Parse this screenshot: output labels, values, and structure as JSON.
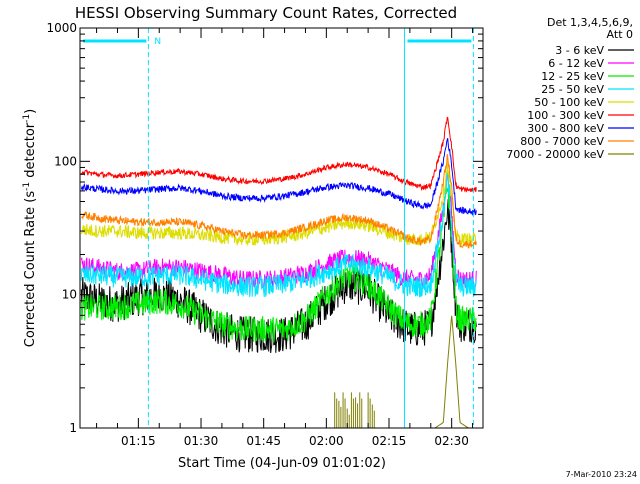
{
  "chart_data": {
    "type": "line",
    "title": "HESSI Observing Summary Count Rates, Corrected",
    "xlabel": "Start Time (04-Jun-09 01:01:02)",
    "ylabel_main": "Corrected Count Rate (s",
    "ylabel_sup1": "-1",
    "ylabel_mid": " detector",
    "ylabel_sup2": "-1",
    "ylabel_end": ")",
    "ylabel": "Corrected Count Rate (s-1 detector-1)",
    "yscale": "log",
    "ylim": [
      1,
      1000
    ],
    "xlim_minutes": [
      61.03,
      157.5
    ],
    "y_ticks": [
      "1",
      "10",
      "100",
      "1000"
    ],
    "x_ticks": [
      {
        "label": "01:15",
        "minute": 75
      },
      {
        "label": "01:30",
        "minute": 90
      },
      {
        "label": "01:45",
        "minute": 105
      },
      {
        "label": "02:00",
        "minute": 120
      },
      {
        "label": "02:15",
        "minute": 135
      },
      {
        "label": "02:30",
        "minute": 150
      }
    ],
    "legend_header": [
      "Det 1,3,4,5,6,9,",
      "Att 0"
    ],
    "legend_position": "right",
    "date_stamp": "7-Mar-2010 23:24",
    "night_marker_label": "N",
    "night_intervals": [
      [
        61.03,
        77.4
      ],
      [
        138.7,
        155.2
      ]
    ],
    "series": [
      {
        "name": "3 - 6 keV",
        "color": "#000000",
        "x": [
          61,
          65,
          70,
          75,
          80,
          85,
          90,
          95,
          100,
          105,
          110,
          115,
          120,
          125,
          130,
          135,
          138,
          140,
          143,
          145,
          148,
          149,
          150,
          151,
          152,
          154,
          157
        ],
        "values": [
          10,
          9,
          8.5,
          9.5,
          10,
          9,
          7,
          5.5,
          5,
          5,
          5,
          6,
          9,
          12,
          11,
          7,
          6,
          5.5,
          5.5,
          6,
          25,
          45,
          25,
          8,
          6,
          6,
          6
        ]
      },
      {
        "name": "6 - 12 keV",
        "color": "#ff00ff",
        "x": [
          61,
          65,
          70,
          75,
          80,
          85,
          90,
          95,
          100,
          105,
          110,
          115,
          120,
          125,
          130,
          135,
          138,
          140,
          143,
          145,
          148,
          149,
          150,
          151,
          152,
          154,
          157
        ],
        "values": [
          17,
          16,
          15,
          15,
          16,
          16,
          15,
          14,
          13,
          13,
          13.5,
          14.5,
          17,
          19,
          18,
          15,
          13.5,
          13,
          13,
          14,
          45,
          90,
          40,
          15,
          13,
          13,
          13
        ]
      },
      {
        "name": "12 - 25 keV",
        "color": "#00ee00",
        "x": [
          61,
          65,
          70,
          75,
          80,
          85,
          90,
          95,
          100,
          105,
          110,
          115,
          120,
          125,
          130,
          135,
          138,
          140,
          143,
          145,
          148,
          149,
          150,
          151,
          152,
          154,
          157
        ],
        "values": [
          8,
          8,
          8,
          8.5,
          9,
          8.5,
          7,
          6,
          5.5,
          5.5,
          5.5,
          6.5,
          10,
          14,
          12,
          8,
          6.5,
          6,
          6,
          6.5,
          35,
          70,
          30,
          8,
          6.5,
          6.5,
          6.5
        ]
      },
      {
        "name": "25 - 50 keV",
        "color": "#00e5ff",
        "x": [
          61,
          65,
          70,
          75,
          80,
          85,
          90,
          95,
          100,
          105,
          110,
          115,
          120,
          125,
          130,
          135,
          138,
          140,
          143,
          145,
          148,
          149,
          150,
          151,
          152,
          154,
          157
        ],
        "values": [
          14,
          14,
          13.5,
          13.5,
          14,
          14,
          13,
          12,
          11.5,
          11.5,
          12,
          13,
          15,
          17,
          16,
          13.5,
          12,
          11.5,
          11.5,
          12,
          40,
          80,
          35,
          13,
          11.5,
          11.5,
          11.5
        ]
      },
      {
        "name": "50 - 100 keV",
        "color": "#dddd00",
        "x": [
          61,
          65,
          70,
          75,
          80,
          85,
          90,
          95,
          100,
          105,
          110,
          115,
          120,
          125,
          130,
          135,
          138,
          140,
          143,
          145,
          148,
          149,
          150,
          151,
          152,
          154,
          157
        ],
        "values": [
          31,
          30,
          30,
          29,
          29,
          29,
          28,
          27,
          26,
          26,
          27,
          29,
          32,
          35,
          33,
          29,
          27,
          26,
          26,
          27,
          55,
          95,
          50,
          28,
          26,
          26,
          26
        ]
      },
      {
        "name": "100 - 300 keV",
        "color": "#ff0000",
        "x": [
          61,
          65,
          70,
          75,
          80,
          85,
          90,
          95,
          100,
          105,
          110,
          115,
          120,
          125,
          130,
          135,
          138,
          140,
          143,
          145,
          148,
          149,
          150,
          151,
          152,
          154,
          157
        ],
        "values": [
          84,
          80,
          78,
          80,
          83,
          84,
          80,
          74,
          71,
          71,
          74,
          80,
          90,
          95,
          90,
          80,
          72,
          68,
          64,
          66,
          140,
          220,
          130,
          66,
          62,
          61,
          61
        ]
      },
      {
        "name": "300 - 800 keV",
        "color": "#0000ff",
        "x": [
          61,
          65,
          70,
          75,
          80,
          85,
          90,
          95,
          100,
          105,
          110,
          115,
          120,
          125,
          130,
          135,
          138,
          140,
          143,
          145,
          148,
          149,
          150,
          151,
          152,
          154,
          157
        ],
        "values": [
          65,
          62,
          60,
          60,
          62,
          63,
          60,
          55,
          53,
          53,
          55,
          59,
          64,
          66,
          63,
          57,
          52,
          49,
          46,
          47,
          100,
          150,
          95,
          45,
          43,
          42,
          42
        ]
      },
      {
        "name": "800 - 7000 keV",
        "color": "#ff8000",
        "x": [
          61,
          65,
          70,
          75,
          80,
          85,
          90,
          95,
          100,
          105,
          110,
          115,
          120,
          125,
          130,
          135,
          138,
          140,
          143,
          145,
          148,
          149,
          150,
          151,
          152,
          154,
          157
        ],
        "values": [
          40,
          38,
          36,
          35,
          35,
          35,
          33,
          30,
          28,
          28,
          29,
          32,
          36,
          38,
          36,
          31,
          28,
          26,
          25,
          26,
          70,
          110,
          65,
          26,
          24,
          24,
          24
        ]
      },
      {
        "name": "7000 - 20000 keV",
        "color": "#808000",
        "x": [
          61,
          125,
          135,
          146,
          148,
          149,
          150,
          151,
          152,
          154,
          157
        ],
        "values": [
          1,
          1,
          1,
          1,
          1.1,
          3,
          7,
          3,
          1.1,
          1,
          1
        ],
        "spikes": [
          [
            122,
            1.85
          ],
          [
            123,
            1.6
          ],
          [
            124,
            1.85
          ],
          [
            125,
            1.4
          ],
          [
            126,
            1.85
          ],
          [
            127,
            1.7
          ],
          [
            128,
            1.85
          ],
          [
            130,
            1.85
          ],
          [
            131,
            1.5
          ]
        ]
      }
    ]
  }
}
